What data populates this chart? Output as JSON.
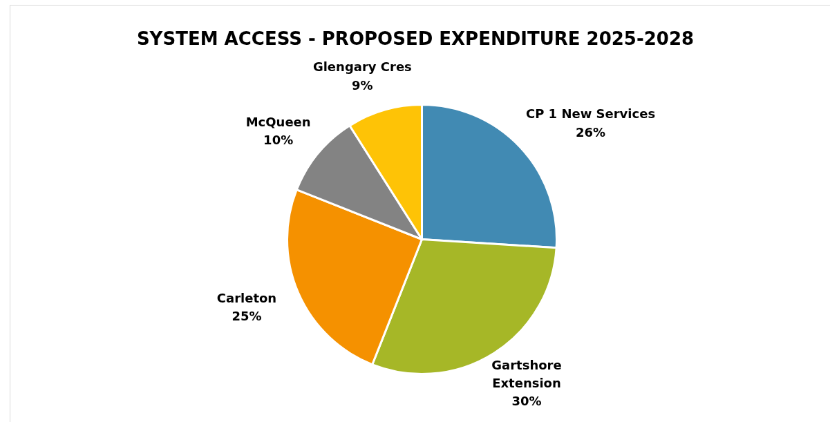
{
  "chart_data": {
    "type": "pie",
    "title": "SYSTEM ACCESS - PROPOSED EXPENDITURE 2025-2028",
    "categories": [
      "CP 1 New Services",
      "Gartshore Extension",
      "Carleton",
      "McQueen",
      "Glengary Cres"
    ],
    "values": [
      26,
      30,
      25,
      10,
      9
    ],
    "colors": [
      "#418ab3",
      "#a6b727",
      "#f59100",
      "#838383",
      "#fec306"
    ],
    "value_labels": [
      "26%",
      "30%",
      "25%",
      "10%",
      "9%"
    ]
  }
}
